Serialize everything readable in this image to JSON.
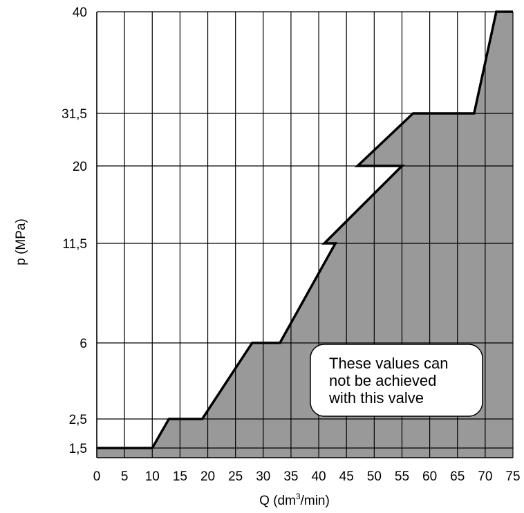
{
  "chart_data": {
    "type": "area",
    "title": "",
    "xlabel_parts": [
      "Q (dm",
      "3",
      "/min)"
    ],
    "xlabel": "Q (dm³/min)",
    "ylabel": "p (MPa)",
    "x_ticks": [
      "0",
      "5",
      "10",
      "15",
      "20",
      "25",
      "30",
      "35",
      "40",
      "45",
      "50",
      "55",
      "60",
      "65",
      "70",
      "75"
    ],
    "xlim": [
      0,
      75
    ],
    "y_ticks": [
      "1,5",
      "2,5",
      "6",
      "11,5",
      "20",
      "31,5",
      "40"
    ],
    "y_tick_values": [
      1.5,
      2.5,
      6,
      11.5,
      20,
      31.5,
      40
    ],
    "y_scale": "non-uniform",
    "grid": true,
    "boundary": {
      "x": [
        0,
        10,
        13,
        19,
        28,
        33,
        43,
        41,
        55,
        47,
        57,
        68,
        72,
        75
      ],
      "y": [
        1.5,
        1.5,
        2.5,
        2.5,
        6,
        6,
        11.5,
        11.5,
        20,
        20,
        31.5,
        31.5,
        40,
        40
      ]
    },
    "fill_color": "#999999",
    "annotation_lines": [
      "These values can",
      "not be achieved",
      "with this valve"
    ]
  }
}
